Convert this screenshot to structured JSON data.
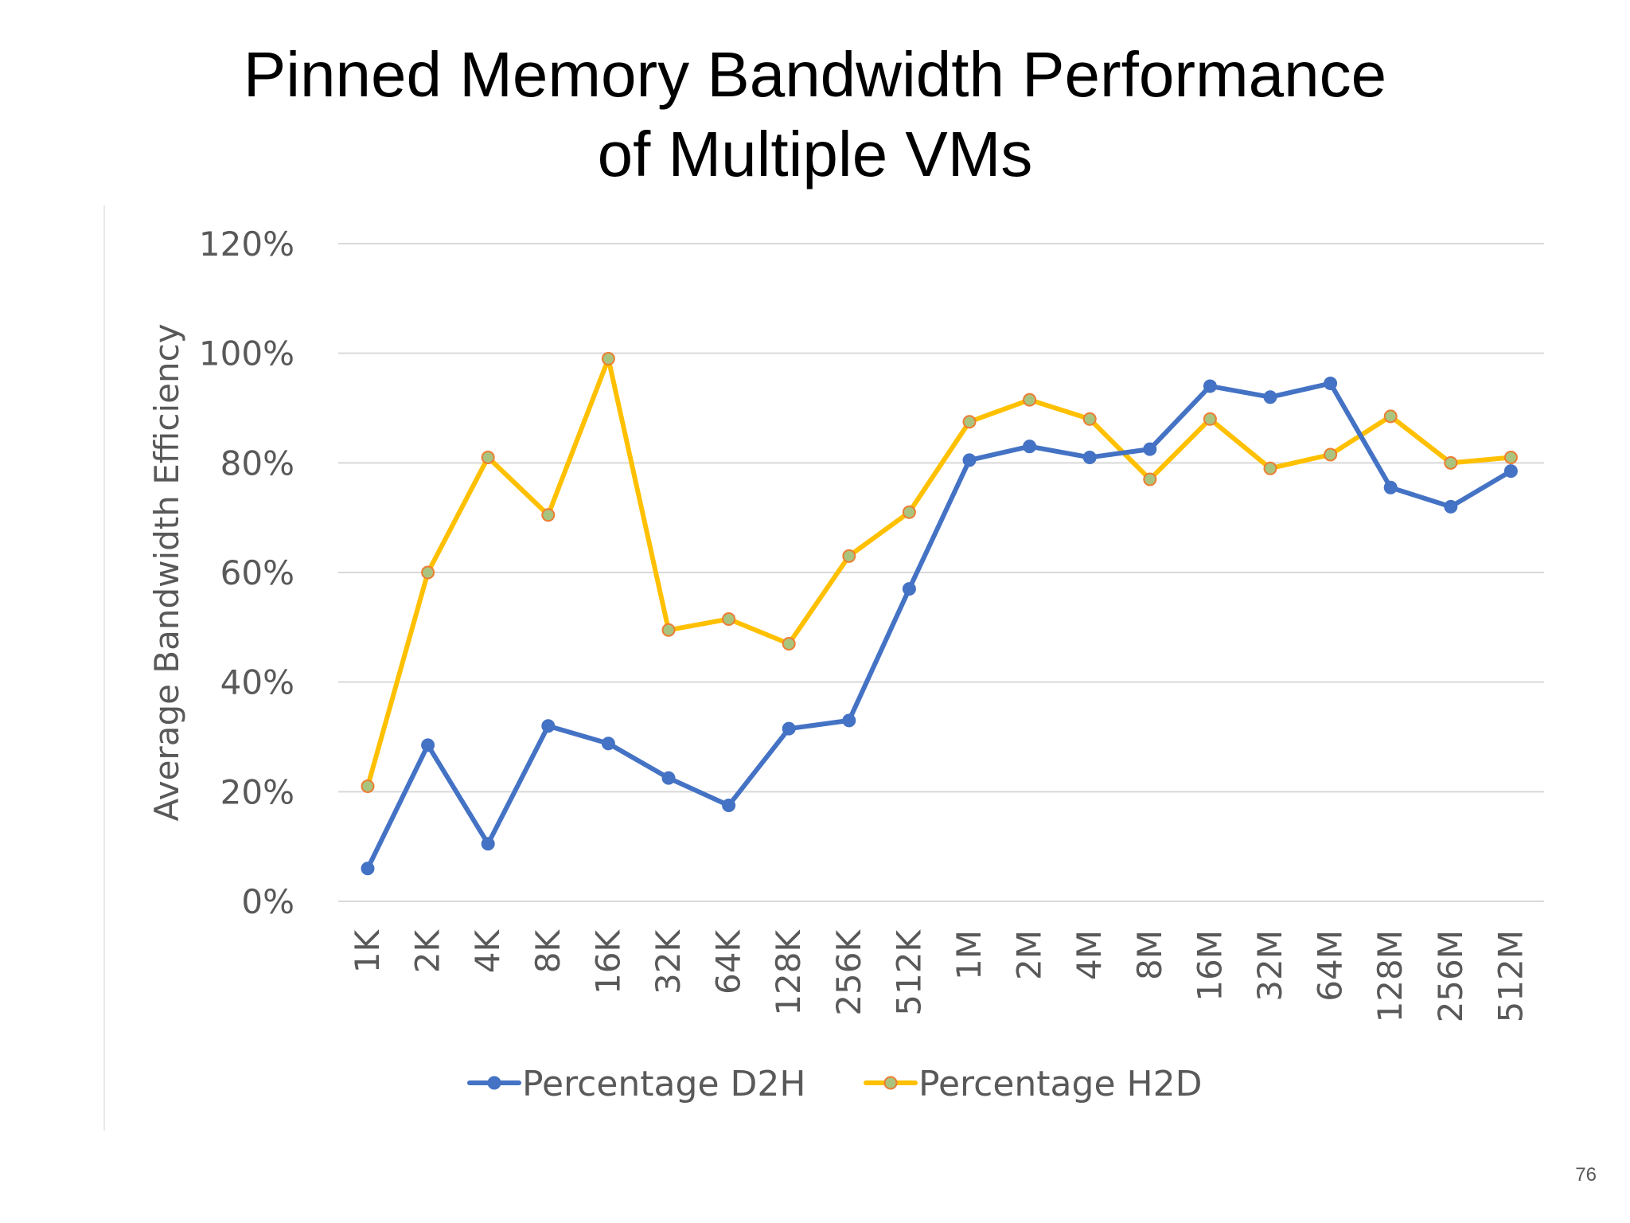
{
  "slide": {
    "title_line1": "Pinned Memory Bandwidth Performance",
    "title_line2": "of Multiple VMs",
    "page_number": "76"
  },
  "chart_data": {
    "type": "line",
    "title": "",
    "xlabel": "",
    "ylabel": "Average Bandwidth Efficiency",
    "ylim": [
      0,
      1.2
    ],
    "yticks": [
      0,
      0.2,
      0.4,
      0.6,
      0.8,
      1.0,
      1.2
    ],
    "ytick_labels": [
      "0%",
      "20%",
      "40%",
      "60%",
      "80%",
      "100%",
      "120%"
    ],
    "grid": "horizontal",
    "legend_position": "bottom",
    "categories": [
      "1K",
      "2K",
      "4K",
      "8K",
      "16K",
      "32K",
      "64K",
      "128K",
      "256K",
      "512K",
      "1M",
      "2M",
      "4M",
      "8M",
      "16M",
      "32M",
      "64M",
      "128M",
      "256M",
      "512M"
    ],
    "series": [
      {
        "name": "Percentage D2H",
        "color": "#4472c4",
        "marker_fill": "#4472c4",
        "marker_stroke": "#4472c4",
        "values": [
          0.06,
          0.285,
          0.105,
          0.32,
          0.288,
          0.225,
          0.175,
          0.315,
          0.33,
          0.57,
          0.805,
          0.83,
          0.81,
          0.825,
          0.94,
          0.92,
          0.945,
          0.755,
          0.72,
          0.785
        ]
      },
      {
        "name": "Percentage H2D",
        "color": "#ffc000",
        "marker_fill": "#a9c47f",
        "marker_stroke": "#ed7d31",
        "values": [
          0.21,
          0.6,
          0.81,
          0.705,
          0.99,
          0.495,
          0.515,
          0.47,
          0.63,
          0.71,
          0.875,
          0.915,
          0.88,
          0.77,
          0.88,
          0.79,
          0.815,
          0.885,
          0.8,
          0.81
        ]
      }
    ]
  }
}
